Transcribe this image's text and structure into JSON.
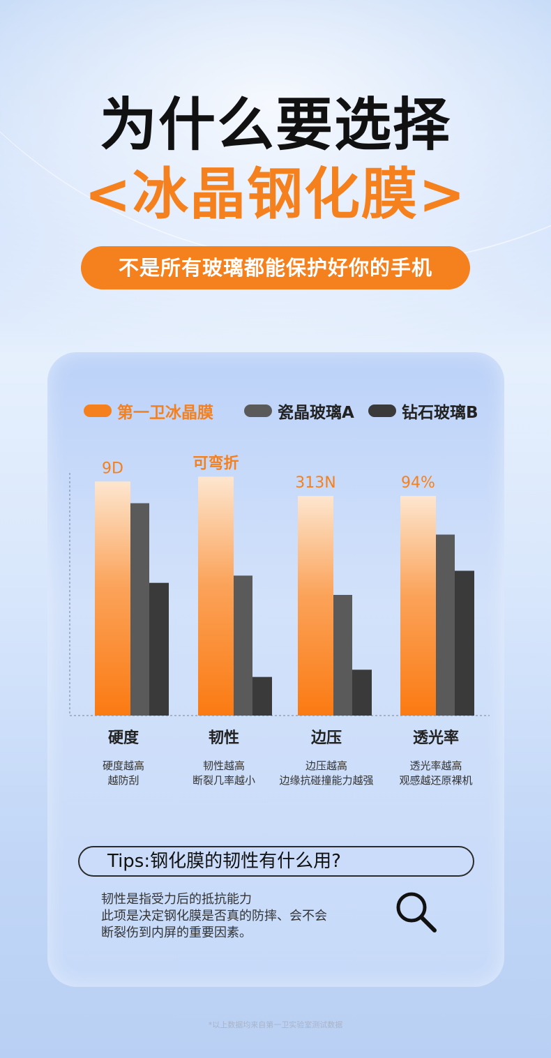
{
  "header": {
    "title": "为什么要选择",
    "subtitle": "<冰晶钢化膜>",
    "tagline": "不是所有玻璃都能保护好你的手机"
  },
  "legend": [
    {
      "label": "第一卫冰晶膜",
      "color": "#f5801e"
    },
    {
      "label": "瓷晶玻璃A",
      "color": "#5a5a5a"
    },
    {
      "label": "钻石玻璃B",
      "color": "#3a3a3a"
    }
  ],
  "chart_data": {
    "type": "bar",
    "categories": [
      "硬度",
      "韧性",
      "边压",
      "透光率"
    ],
    "series": [
      {
        "name": "第一卫冰晶膜",
        "values": [
          97,
          99,
          91,
          91
        ],
        "labels": [
          "9D",
          "可弯折",
          "313N",
          "94%"
        ]
      },
      {
        "name": "瓷晶玻璃A",
        "values": [
          88,
          58,
          50,
          75
        ]
      },
      {
        "name": "钻石玻璃B",
        "values": [
          55,
          16,
          19,
          60
        ]
      }
    ],
    "ylim": [
      0,
      100
    ],
    "grid": false,
    "legend_position": "top"
  },
  "categories_desc": [
    {
      "name": "硬度",
      "line1": "硬度越高",
      "line2": "越防刮"
    },
    {
      "name": "韧性",
      "line1": "韧性越高",
      "line2": "断裂几率越小"
    },
    {
      "name": "边压",
      "line1": "边压越高",
      "line2": "边缘抗碰撞能力越强"
    },
    {
      "name": "透光率",
      "line1": "透光率越高",
      "line2": "观感越还原裸机"
    }
  ],
  "tips": {
    "title": "Tips:钢化膜的韧性有什么用?",
    "lines": [
      "韧性是指受力后的抵抗能力",
      "此项是决定钢化膜是否真的防摔、会不会",
      "断裂伤到内屏的重要因素。"
    ]
  },
  "footnote": "*以上数据均来自第一卫实验室测试数据",
  "icons": {
    "search": "search-icon"
  }
}
